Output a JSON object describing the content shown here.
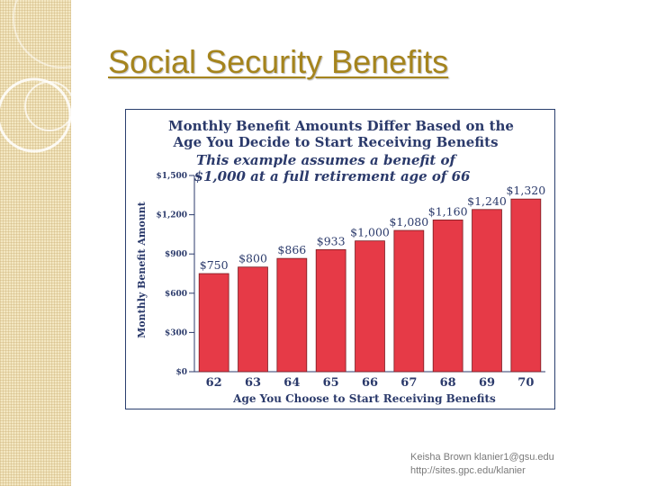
{
  "slide": {
    "title": "Social Security Benefits",
    "footer_line1": "Keisha Brown klanier1@gsu.edu",
    "footer_line2": "http://sites.gpc.edu/klanier"
  },
  "colors": {
    "bar": "#e63a47",
    "bar_stroke": "#7a1a20",
    "text": "#2b3a6b",
    "title": "#a5841d"
  },
  "chart_data": {
    "type": "bar",
    "title_lines": [
      "Monthly Benefit Amounts Differ Based on the",
      "Age You Decide to Start Receiving Benefits"
    ],
    "subtitle_lines": [
      "This example assumes a benefit of",
      "$1,000 at a full retirement age of 66"
    ],
    "categories": [
      "62",
      "63",
      "64",
      "65",
      "66",
      "67",
      "68",
      "69",
      "70"
    ],
    "values": [
      750,
      800,
      866,
      933,
      1000,
      1080,
      1160,
      1240,
      1320
    ],
    "value_labels": [
      "$750",
      "$800",
      "$866",
      "$933",
      "$1,000",
      "$1,080",
      "$1,160",
      "$1,240",
      "$1,320"
    ],
    "xlabel": "Age You Choose to Start Receiving Benefits",
    "ylabel": "Monthly Benefit Amount",
    "ylim": [
      0,
      1500
    ],
    "yticks": [
      0,
      300,
      600,
      900,
      1200,
      1500
    ],
    "ytick_labels": [
      "$0",
      "$300",
      "$600",
      "$900",
      "$1,200",
      "$1,500"
    ],
    "grid": false
  }
}
